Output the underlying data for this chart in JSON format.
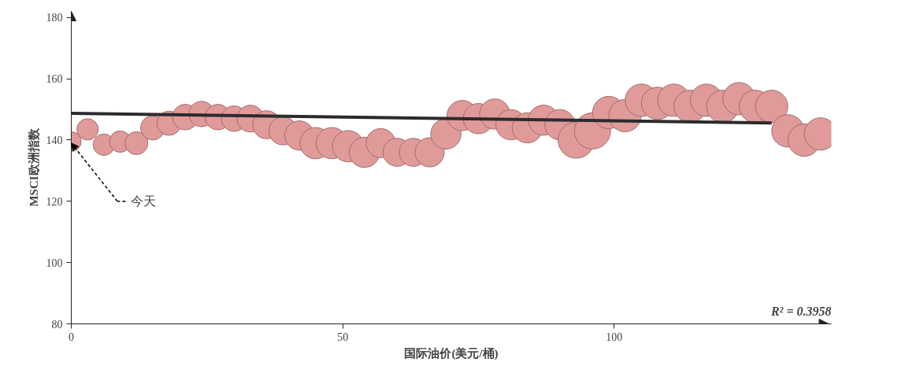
{
  "chart_data": {
    "type": "bubble",
    "xlabel": "国际油价(美元/桶)",
    "ylabel": "MSCI欧洲指数",
    "xlim": [
      0,
      140
    ],
    "ylim": [
      80,
      182
    ],
    "xticks": [
      0,
      50,
      100
    ],
    "yticks": [
      80,
      100,
      120,
      140,
      160,
      180
    ],
    "grid": false,
    "annotations": [
      {
        "text": "今天",
        "x": 0,
        "y": 139.5
      },
      "R² = 0.3958"
    ],
    "series": [
      {
        "color": "#e09a9a",
        "x": [
          0,
          3,
          6,
          9,
          12,
          15,
          18,
          21,
          24,
          27,
          30,
          33,
          36,
          39,
          42,
          45,
          48,
          51,
          54,
          57,
          60,
          63,
          66,
          69,
          72,
          75,
          78,
          81,
          84,
          87,
          90,
          93,
          96,
          99,
          102,
          105,
          108,
          111,
          114,
          117,
          120,
          123,
          126,
          129,
          132,
          135,
          138
        ],
        "values": [
          139.5,
          143.5,
          138.5,
          139.5,
          139,
          144,
          145.5,
          147.5,
          148.5,
          147.5,
          147,
          147,
          145,
          143,
          141.5,
          139,
          139,
          138,
          136,
          139,
          136,
          136,
          136,
          142,
          148,
          147,
          148.5,
          145,
          144,
          146.5,
          145,
          140,
          143,
          149,
          148,
          153,
          152,
          153,
          151,
          153,
          151,
          153.5,
          151,
          151,
          143,
          140,
          142
        ],
        "sizes": [
          0.3,
          0.35,
          0.35,
          0.35,
          0.4,
          0.45,
          0.45,
          0.5,
          0.5,
          0.5,
          0.5,
          0.55,
          0.6,
          0.6,
          0.65,
          0.75,
          0.75,
          0.75,
          0.7,
          0.65,
          0.6,
          0.6,
          0.65,
          0.7,
          0.7,
          0.7,
          0.7,
          0.7,
          0.7,
          0.7,
          0.7,
          1,
          1,
          0.8,
          0.8,
          0.8,
          0.8,
          0.8,
          0.8,
          0.8,
          0.8,
          0.8,
          0.8,
          0.8,
          0.8,
          0.8,
          0.8
        ]
      },
      {
        "type": "line",
        "color": "#2b2b2e",
        "x": [
          0,
          129
        ],
        "values": [
          148.7,
          145.6
        ]
      }
    ]
  }
}
